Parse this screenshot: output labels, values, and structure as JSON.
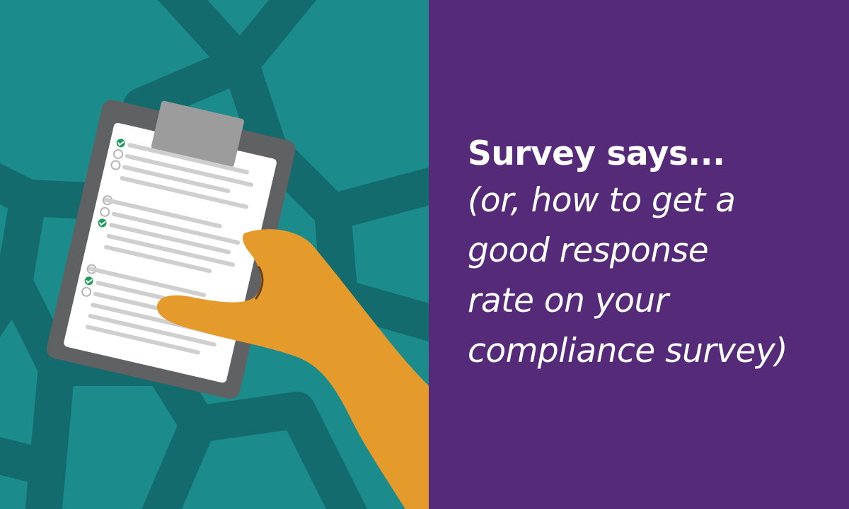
{
  "headline": {
    "title": "Survey says...",
    "subtitle_lines": [
      "(or, how to get a",
      "good response",
      "rate on your",
      "compliance survey)"
    ]
  },
  "colors": {
    "teal_background": "#1c8b8b",
    "teal_grid": "#136b6e",
    "purple_panel": "#552a78",
    "hand": "#e59a2c",
    "clipboard_board": "#606162",
    "clipboard_clip": "#9c9c9c",
    "paper": "#ffffff",
    "line": "#cfcfcf",
    "check_green": "#1e9c5a"
  },
  "illustration": {
    "hand_icon": "hand-holding-clipboard",
    "checklist": [
      {
        "state": "checked"
      },
      {
        "state": "unchecked"
      },
      {
        "state": "unchecked"
      },
      {
        "state": "unchecked"
      },
      {
        "state": "unchecked"
      },
      {
        "state": "checked"
      },
      {
        "state": "unchecked"
      },
      {
        "state": "checked"
      },
      {
        "state": "unchecked"
      }
    ]
  }
}
